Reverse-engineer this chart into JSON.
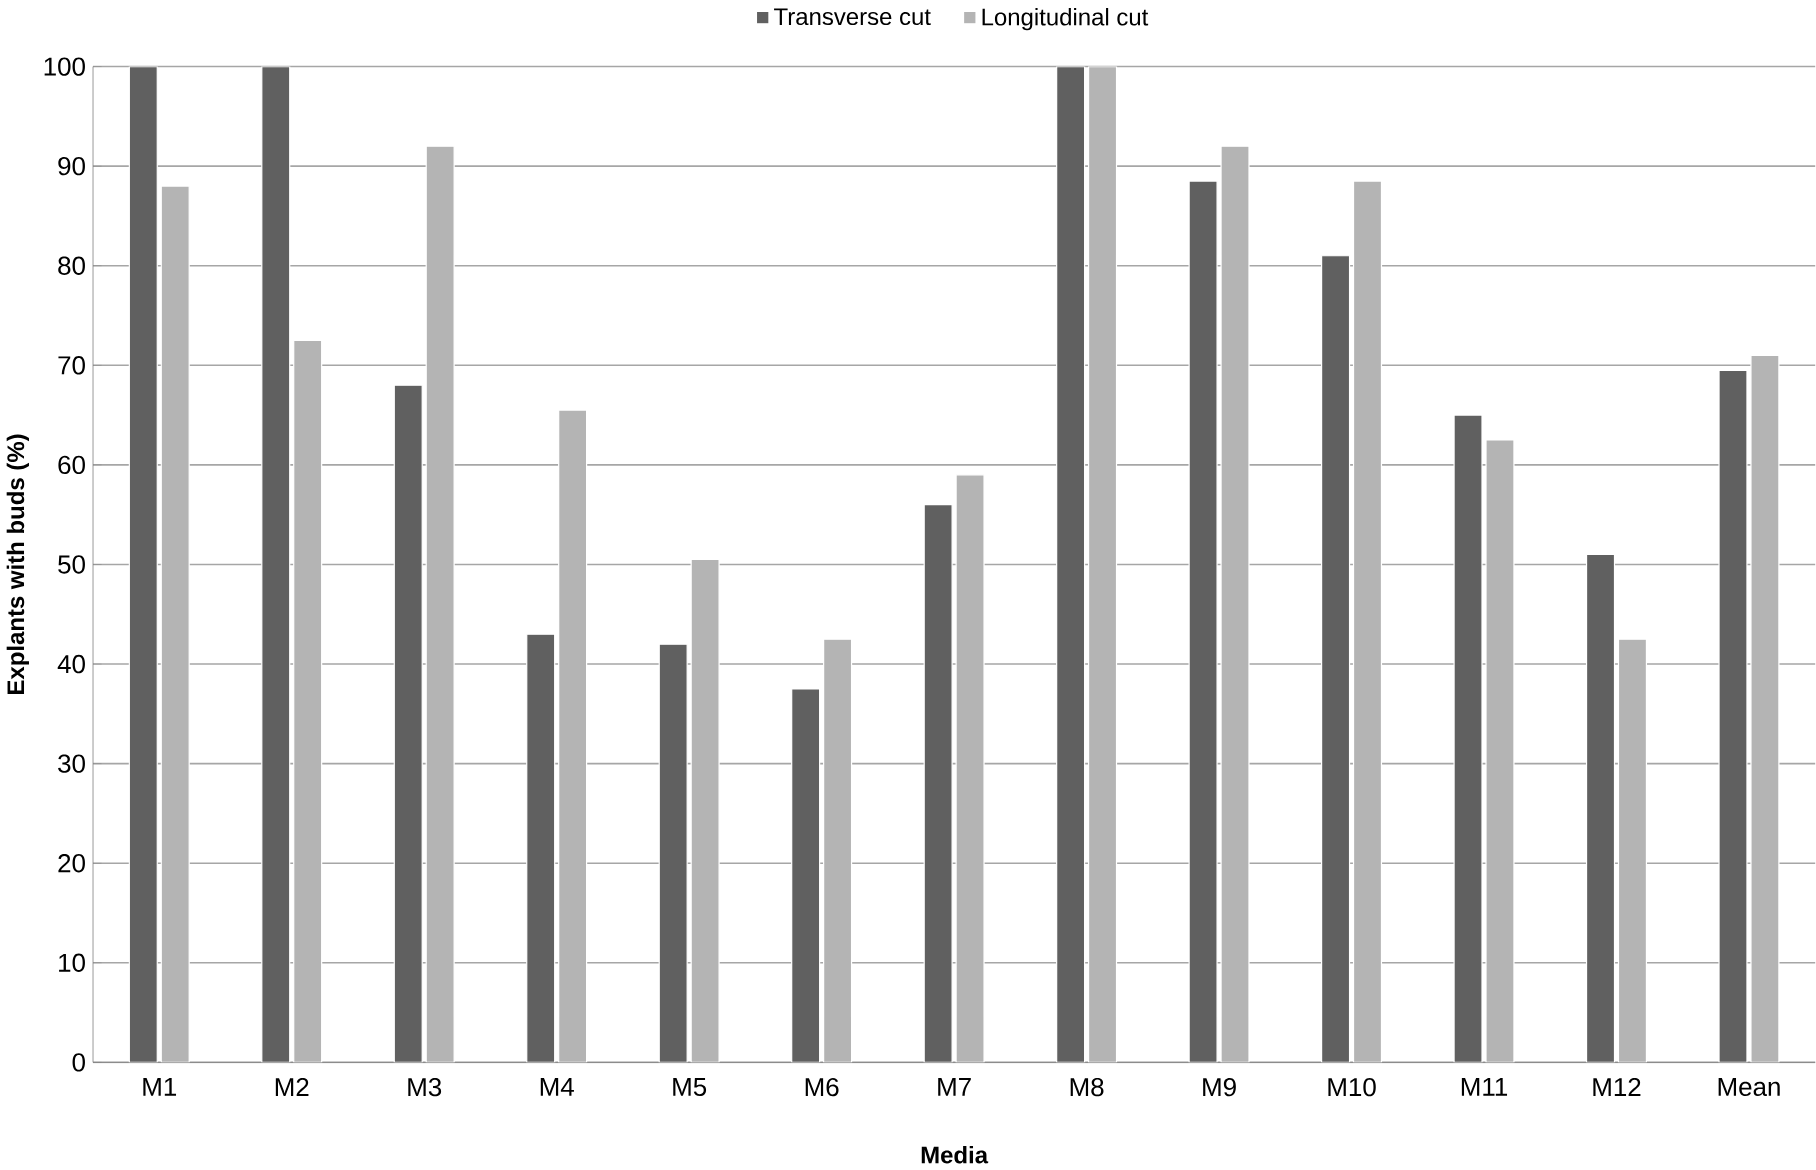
{
  "chart_data": {
    "type": "bar",
    "xlabel": "Media",
    "ylabel": "Explants with buds (%)",
    "categories": [
      "M1",
      "M2",
      "M3",
      "M4",
      "M5",
      "M6",
      "M7",
      "M8",
      "M9",
      "M10",
      "M11",
      "M12",
      "Mean"
    ],
    "series": [
      {
        "name": "Transverse cut",
        "color": "#606060",
        "values": [
          100,
          100,
          68,
          43,
          42,
          37.5,
          56,
          100,
          88.5,
          81,
          65,
          51,
          69.5
        ]
      },
      {
        "name": "Longitudinal cut",
        "color": "#b4b4b4",
        "values": [
          88,
          72.5,
          92,
          65.5,
          50.5,
          42.5,
          59,
          100,
          92,
          88.5,
          62.5,
          42.5,
          71
        ]
      }
    ],
    "ylim": [
      0,
      100
    ],
    "yticks": [
      0,
      10,
      20,
      30,
      40,
      50,
      60,
      70,
      80,
      90,
      100
    ],
    "grid": "y",
    "legend": "top"
  }
}
